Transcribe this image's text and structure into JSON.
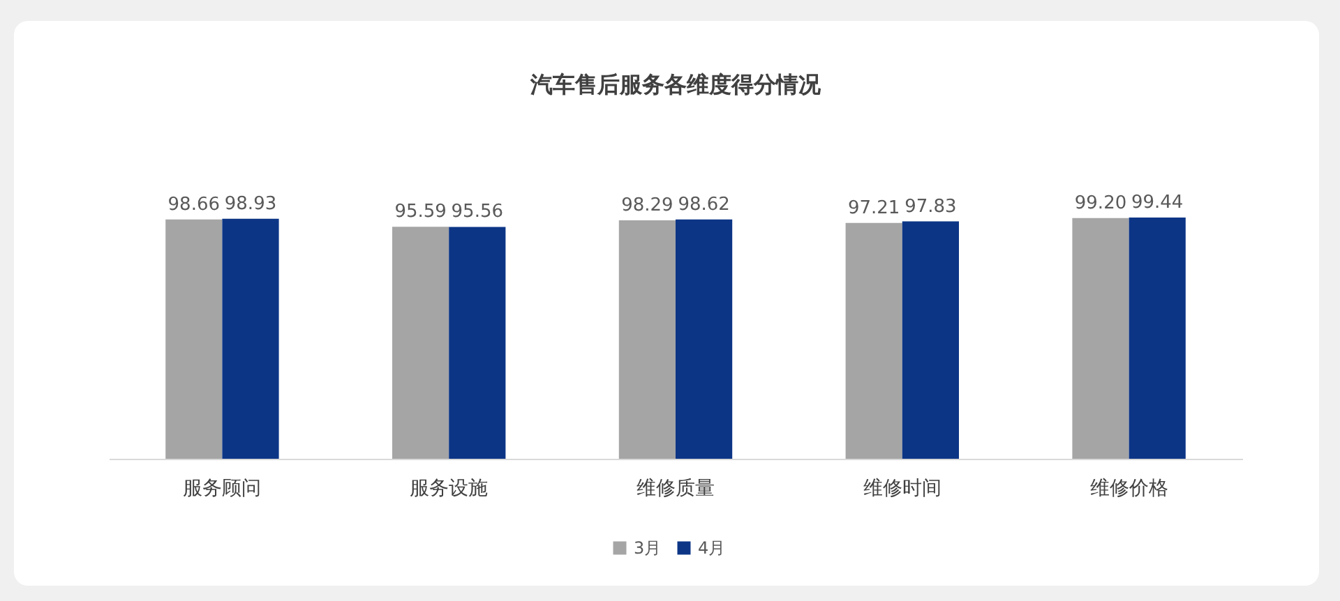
{
  "chart_data": {
    "type": "bar",
    "title": "汽车售后服务各维度得分情况",
    "categories": [
      "服务顾问",
      "服务设施",
      "维修质量",
      "维修时间",
      "维修价格"
    ],
    "series": [
      {
        "name": "3月",
        "color": "#a5a5a5",
        "values": [
          98.66,
          95.59,
          98.29,
          97.21,
          99.2
        ],
        "value_labels": [
          "98.66",
          "95.59",
          "98.29",
          "97.21",
          "99.20"
        ]
      },
      {
        "name": "4月",
        "color": "#0c3586",
        "values": [
          98.93,
          95.56,
          98.62,
          97.83,
          99.44
        ],
        "value_labels": [
          "98.93",
          "95.56",
          "98.62",
          "97.83",
          "99.44"
        ]
      }
    ],
    "tick_labels": "x",
    "legend": "bottom"
  }
}
